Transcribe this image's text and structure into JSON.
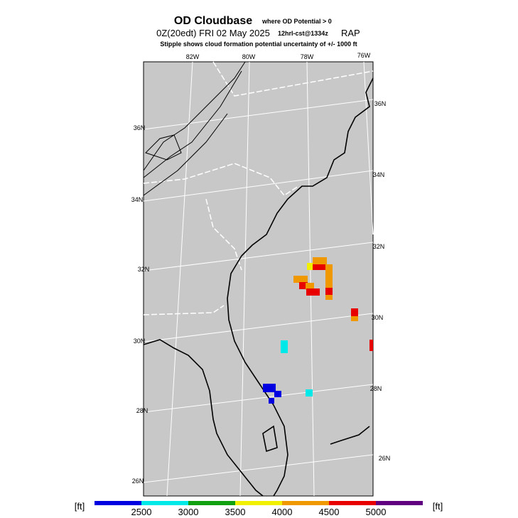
{
  "header": {
    "title": "OD Cloudbase",
    "title_note": "where OD Potential > 0",
    "valid_time": "0Z(20edt) FRI 02 May 2025",
    "forecast": "12hrl-cst@1334z",
    "model": "RAP",
    "subtitle": "Stipple shows cloud formation potential uncertainty of +/-  1000 ft"
  },
  "map": {
    "lon_labels": [
      "82W",
      "80W",
      "78W",
      "76W"
    ],
    "lat_labels_left": [
      "36N",
      "34N",
      "32N",
      "30N",
      "28N",
      "26N"
    ],
    "lat_labels_right": [
      "36N",
      "34N",
      "32N",
      "30N",
      "28N",
      "26N"
    ]
  },
  "legend": {
    "unit_left": "[ft]",
    "unit_right": "[ft]",
    "ticks": [
      2500,
      3000,
      3500,
      4000,
      4500,
      5000
    ],
    "colors": [
      "#0000e0",
      "#00e8e8",
      "#10a010",
      "#f0f000",
      "#f09800",
      "#e80000",
      "#600080"
    ]
  }
}
